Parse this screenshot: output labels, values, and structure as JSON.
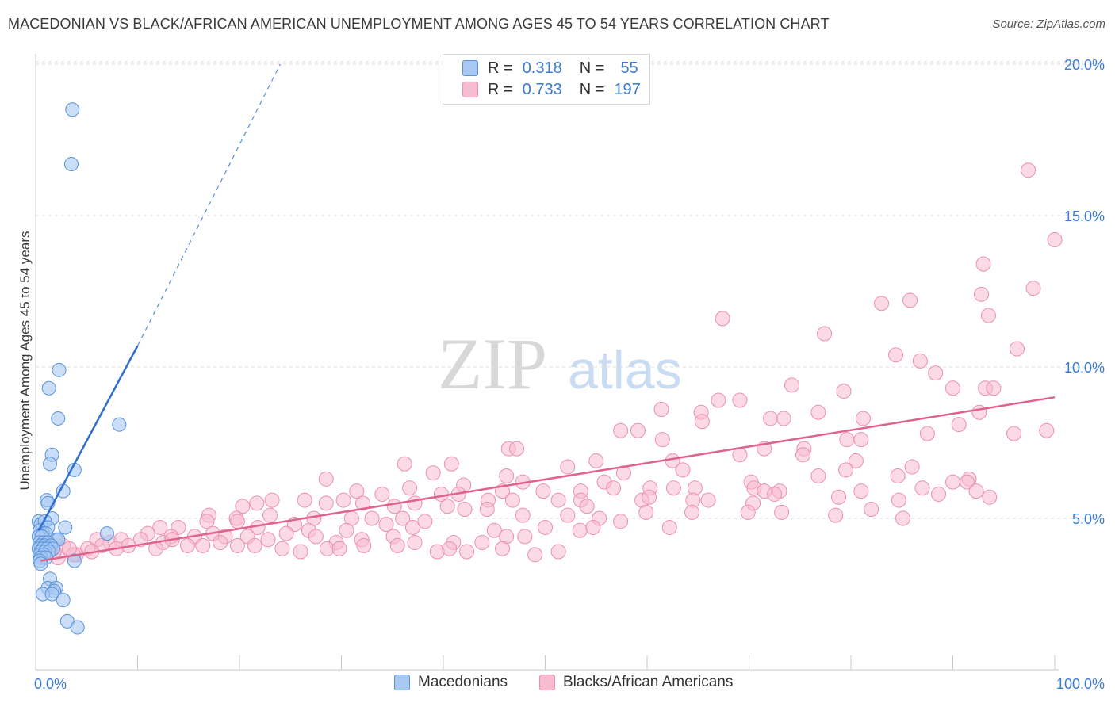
{
  "header": {
    "title": "MACEDONIAN VS BLACK/AFRICAN AMERICAN UNEMPLOYMENT AMONG AGES 45 TO 54 YEARS CORRELATION CHART",
    "source": "Source: ZipAtlas.com"
  },
  "watermark": {
    "zip": "ZIP",
    "atlas": "atlas"
  },
  "legend_top": {
    "rows": [
      {
        "r_label": "R =",
        "r_value": "0.318",
        "n_label": "N =",
        "n_value": "55"
      },
      {
        "r_label": "R =",
        "r_value": "0.733",
        "n_label": "N =",
        "n_value": "197"
      }
    ]
  },
  "legend_bottom": {
    "series1": "Macedonians",
    "series2": "Blacks/African Americans"
  },
  "colors": {
    "series1_fill": "#a7c8f2",
    "series1_stroke": "#5b92dd",
    "series1_line": "#2f6fd0",
    "series2_fill": "#f7bcd0",
    "series2_stroke": "#ea8fb0",
    "series2_line": "#e0628f",
    "axis_label": "#3a7bd5",
    "grid": "#dcdcdc"
  },
  "chart_data": {
    "type": "scatter",
    "ylabel": "Unemployment Among Ages 45 to 54 years",
    "x_tick_labels": [
      "0.0%",
      "100.0%"
    ],
    "y_tick_labels": [
      "5.0%",
      "10.0%",
      "15.0%",
      "20.0%"
    ],
    "xlim": [
      0,
      100
    ],
    "ylim": [
      0,
      20.5
    ],
    "grid": true,
    "series": [
      {
        "name": "Macedonians",
        "r": 0.318,
        "n": 55,
        "trend": {
          "x0": 0.3,
          "y0": 4.6,
          "x1": 10.0,
          "y1": 10.7,
          "dash_x1": 24.0,
          "dash_y1": 20.0
        },
        "points": [
          [
            3.6,
            18.5
          ],
          [
            3.5,
            16.7
          ],
          [
            2.3,
            9.9
          ],
          [
            1.3,
            9.3
          ],
          [
            2.2,
            8.3
          ],
          [
            8.2,
            8.1
          ],
          [
            1.6,
            7.1
          ],
          [
            1.4,
            6.8
          ],
          [
            3.8,
            6.6
          ],
          [
            2.7,
            5.9
          ],
          [
            1.1,
            5.6
          ],
          [
            1.2,
            5.5
          ],
          [
            1.6,
            5.0
          ],
          [
            0.3,
            4.9
          ],
          [
            0.5,
            4.8
          ],
          [
            0.9,
            4.9
          ],
          [
            1.2,
            4.7
          ],
          [
            2.9,
            4.7
          ],
          [
            0.4,
            4.6
          ],
          [
            0.7,
            4.5
          ],
          [
            1.0,
            4.5
          ],
          [
            7.0,
            4.5
          ],
          [
            0.3,
            4.4
          ],
          [
            0.6,
            4.4
          ],
          [
            2.0,
            4.3
          ],
          [
            2.2,
            4.3
          ],
          [
            0.4,
            4.2
          ],
          [
            0.8,
            4.2
          ],
          [
            1.2,
            4.2
          ],
          [
            0.5,
            4.1
          ],
          [
            0.9,
            4.1
          ],
          [
            1.5,
            4.1
          ],
          [
            0.3,
            4.0
          ],
          [
            0.7,
            4.0
          ],
          [
            1.1,
            4.0
          ],
          [
            1.7,
            4.0
          ],
          [
            0.5,
            3.9
          ],
          [
            0.9,
            3.9
          ],
          [
            1.3,
            3.9
          ],
          [
            0.4,
            3.8
          ],
          [
            0.8,
            3.8
          ],
          [
            0.5,
            3.7
          ],
          [
            1.0,
            3.7
          ],
          [
            0.4,
            3.6
          ],
          [
            3.8,
            3.6
          ],
          [
            0.5,
            3.5
          ],
          [
            1.4,
            3.0
          ],
          [
            1.2,
            2.7
          ],
          [
            2.0,
            2.7
          ],
          [
            1.8,
            2.6
          ],
          [
            0.7,
            2.5
          ],
          [
            1.6,
            2.5
          ],
          [
            2.7,
            2.3
          ],
          [
            3.1,
            1.6
          ],
          [
            4.1,
            1.4
          ]
        ]
      },
      {
        "name": "Blacks/African Americans",
        "r": 0.733,
        "n": 197,
        "trend": {
          "x0": 0.5,
          "y0": 3.6,
          "x1": 100.0,
          "y1": 9.0
        },
        "points": [
          [
            97.4,
            16.5
          ],
          [
            100.0,
            14.2
          ],
          [
            93.0,
            13.4
          ],
          [
            97.9,
            12.6
          ],
          [
            92.8,
            12.4
          ],
          [
            83.0,
            12.1
          ],
          [
            85.8,
            12.2
          ],
          [
            93.5,
            11.7
          ],
          [
            67.4,
            11.6
          ],
          [
            77.4,
            11.1
          ],
          [
            96.3,
            10.6
          ],
          [
            84.4,
            10.4
          ],
          [
            86.8,
            10.2
          ],
          [
            88.3,
            9.8
          ],
          [
            74.2,
            9.4
          ],
          [
            79.3,
            9.2
          ],
          [
            90.0,
            9.3
          ],
          [
            93.2,
            9.3
          ],
          [
            94.0,
            9.3
          ],
          [
            67.0,
            8.9
          ],
          [
            69.1,
            8.9
          ],
          [
            65.3,
            8.5
          ],
          [
            76.8,
            8.5
          ],
          [
            61.4,
            8.6
          ],
          [
            72.1,
            8.3
          ],
          [
            73.4,
            8.3
          ],
          [
            81.2,
            8.3
          ],
          [
            90.6,
            8.1
          ],
          [
            92.6,
            8.5
          ],
          [
            65.4,
            8.2
          ],
          [
            57.4,
            7.9
          ],
          [
            59.1,
            7.9
          ],
          [
            87.5,
            7.8
          ],
          [
            96.0,
            7.8
          ],
          [
            81.0,
            7.6
          ],
          [
            61.5,
            7.6
          ],
          [
            79.6,
            7.6
          ],
          [
            99.2,
            7.9
          ],
          [
            75.4,
            7.3
          ],
          [
            71.5,
            7.3
          ],
          [
            46.4,
            7.3
          ],
          [
            47.2,
            7.3
          ],
          [
            75.3,
            7.1
          ],
          [
            69.1,
            7.1
          ],
          [
            80.5,
            6.9
          ],
          [
            55.0,
            6.9
          ],
          [
            62.5,
            6.9
          ],
          [
            36.2,
            6.8
          ],
          [
            40.8,
            6.8
          ],
          [
            52.2,
            6.7
          ],
          [
            63.5,
            6.6
          ],
          [
            57.7,
            6.5
          ],
          [
            79.5,
            6.6
          ],
          [
            39.0,
            6.5
          ],
          [
            86.0,
            6.7
          ],
          [
            84.6,
            6.4
          ],
          [
            91.6,
            6.3
          ],
          [
            76.8,
            6.4
          ],
          [
            46.2,
            6.4
          ],
          [
            90.0,
            6.2
          ],
          [
            91.4,
            6.2
          ],
          [
            28.5,
            6.3
          ],
          [
            47.8,
            6.2
          ],
          [
            70.2,
            6.2
          ],
          [
            55.8,
            6.2
          ],
          [
            42.0,
            6.1
          ],
          [
            36.7,
            6.0
          ],
          [
            60.3,
            6.0
          ],
          [
            70.5,
            6.0
          ],
          [
            56.7,
            6.0
          ],
          [
            62.6,
            6.0
          ],
          [
            64.7,
            6.0
          ],
          [
            87.0,
            6.0
          ],
          [
            92.3,
            5.9
          ],
          [
            45.8,
            5.9
          ],
          [
            49.8,
            5.9
          ],
          [
            31.5,
            5.9
          ],
          [
            81.0,
            5.9
          ],
          [
            73.0,
            5.9
          ],
          [
            71.5,
            5.9
          ],
          [
            53.5,
            5.9
          ],
          [
            41.5,
            5.8
          ],
          [
            39.8,
            5.8
          ],
          [
            34.0,
            5.8
          ],
          [
            88.6,
            5.8
          ],
          [
            72.5,
            5.8
          ],
          [
            78.8,
            5.7
          ],
          [
            93.6,
            5.7
          ],
          [
            23.2,
            5.6
          ],
          [
            21.7,
            5.5
          ],
          [
            26.4,
            5.6
          ],
          [
            30.2,
            5.6
          ],
          [
            32.1,
            5.5
          ],
          [
            37.2,
            5.5
          ],
          [
            44.4,
            5.6
          ],
          [
            46.8,
            5.6
          ],
          [
            51.3,
            5.6
          ],
          [
            53.5,
            5.6
          ],
          [
            59.5,
            5.6
          ],
          [
            84.7,
            5.6
          ],
          [
            60.2,
            5.7
          ],
          [
            64.5,
            5.6
          ],
          [
            66.0,
            5.6
          ],
          [
            70.4,
            5.5
          ],
          [
            20.3,
            5.4
          ],
          [
            28.5,
            5.5
          ],
          [
            35.2,
            5.4
          ],
          [
            40.4,
            5.4
          ],
          [
            42.1,
            5.3
          ],
          [
            44.3,
            5.3
          ],
          [
            54.1,
            5.4
          ],
          [
            17.0,
            5.1
          ],
          [
            19.7,
            5.0
          ],
          [
            23.0,
            5.1
          ],
          [
            27.3,
            5.0
          ],
          [
            31.0,
            5.0
          ],
          [
            33.0,
            5.0
          ],
          [
            36.0,
            5.0
          ],
          [
            47.8,
            5.1
          ],
          [
            52.2,
            5.1
          ],
          [
            55.3,
            5.0
          ],
          [
            59.9,
            5.2
          ],
          [
            64.4,
            5.2
          ],
          [
            69.9,
            5.2
          ],
          [
            73.2,
            5.2
          ],
          [
            78.5,
            5.1
          ],
          [
            82.0,
            5.3
          ],
          [
            85.1,
            5.0
          ],
          [
            57.4,
            4.9
          ],
          [
            12.2,
            4.7
          ],
          [
            14.0,
            4.7
          ],
          [
            16.8,
            4.9
          ],
          [
            19.8,
            4.9
          ],
          [
            21.8,
            4.7
          ],
          [
            25.4,
            4.8
          ],
          [
            26.8,
            4.6
          ],
          [
            27.5,
            4.4
          ],
          [
            30.5,
            4.6
          ],
          [
            34.4,
            4.8
          ],
          [
            37.0,
            4.7
          ],
          [
            38.2,
            4.9
          ],
          [
            45.0,
            4.6
          ],
          [
            50.0,
            4.7
          ],
          [
            53.4,
            4.6
          ],
          [
            54.7,
            4.7
          ],
          [
            62.2,
            4.7
          ],
          [
            11.0,
            4.5
          ],
          [
            13.3,
            4.4
          ],
          [
            15.6,
            4.4
          ],
          [
            17.4,
            4.5
          ],
          [
            18.6,
            4.4
          ],
          [
            20.8,
            4.4
          ],
          [
            22.8,
            4.3
          ],
          [
            24.6,
            4.5
          ],
          [
            29.5,
            4.2
          ],
          [
            32.0,
            4.3
          ],
          [
            35.1,
            4.4
          ],
          [
            37.2,
            4.2
          ],
          [
            41.0,
            4.2
          ],
          [
            43.8,
            4.2
          ],
          [
            46.2,
            4.4
          ],
          [
            48.0,
            4.4
          ],
          [
            6.0,
            4.3
          ],
          [
            7.3,
            4.2
          ],
          [
            8.4,
            4.3
          ],
          [
            10.3,
            4.3
          ],
          [
            12.5,
            4.2
          ],
          [
            13.4,
            4.3
          ],
          [
            14.9,
            4.1
          ],
          [
            16.4,
            4.1
          ],
          [
            18.1,
            4.2
          ],
          [
            19.8,
            4.1
          ],
          [
            21.5,
            4.1
          ],
          [
            24.2,
            4.0
          ],
          [
            26.0,
            3.9
          ],
          [
            28.6,
            4.0
          ],
          [
            29.8,
            4.0
          ],
          [
            32.2,
            4.1
          ],
          [
            35.5,
            4.1
          ],
          [
            39.4,
            3.9
          ],
          [
            40.6,
            4.0
          ],
          [
            42.3,
            3.9
          ],
          [
            45.8,
            4.0
          ],
          [
            49.0,
            3.8
          ],
          [
            51.3,
            3.9
          ],
          [
            5.1,
            4.0
          ],
          [
            6.5,
            4.1
          ],
          [
            7.9,
            4.0
          ],
          [
            9.1,
            4.1
          ],
          [
            11.8,
            4.0
          ],
          [
            4.0,
            3.8
          ],
          [
            5.5,
            3.9
          ],
          [
            3.7,
            3.8
          ],
          [
            2.7,
            4.1
          ],
          [
            3.3,
            4.0
          ],
          [
            2.2,
            3.7
          ],
          [
            1.8,
            3.9
          ]
        ]
      }
    ]
  }
}
